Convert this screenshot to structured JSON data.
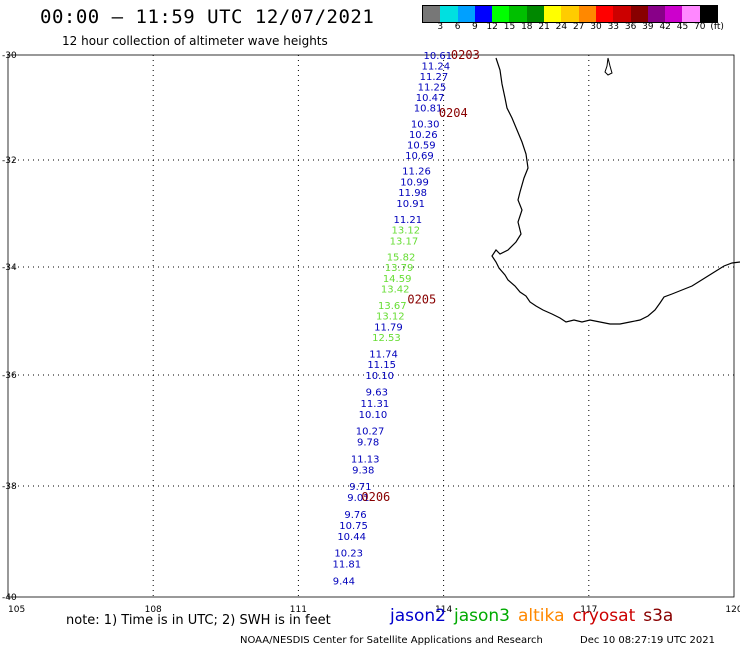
{
  "header": {
    "title": "00:00 – 11:59 UTC 12/07/2021",
    "subtitle": "12 hour collection of altimeter wave heights"
  },
  "colorbar": {
    "colors": [
      "#777777",
      "#00e0e0",
      "#00a0ff",
      "#0000ff",
      "#00ff00",
      "#00c000",
      "#008800",
      "#ffff00",
      "#ffcc00",
      "#ff8800",
      "#ff0000",
      "#cc0000",
      "#880000",
      "#880088",
      "#cc00cc",
      "#ff88ff",
      "#000000"
    ],
    "labels": [
      "3",
      "6",
      "9",
      "12",
      "15",
      "18",
      "21",
      "24",
      "27",
      "30",
      "33",
      "36",
      "39",
      "42",
      "45",
      "70",
      "(ft)"
    ]
  },
  "axes": {
    "lon_ticks": [
      "105",
      "108",
      "111",
      "114",
      "117",
      "120"
    ],
    "lat_ticks": [
      "-30",
      "-32",
      "-34",
      "-36",
      "-38",
      "-40"
    ]
  },
  "track": {
    "color_blue": "#0000bb",
    "color_green": "#66dd33",
    "points": [
      {
        "lat": -30.0,
        "lon": 113.88,
        "v": "10.61",
        "c": "b"
      },
      {
        "lat": -30.2,
        "lon": 113.84,
        "v": "11.24",
        "c": "b"
      },
      {
        "lat": -30.4,
        "lon": 113.8,
        "v": "11.27",
        "c": "b"
      },
      {
        "lat": -30.6,
        "lon": 113.76,
        "v": "11.25",
        "c": "b"
      },
      {
        "lat": -30.8,
        "lon": 113.72,
        "v": "10.47",
        "c": "b"
      },
      {
        "lat": -31.0,
        "lon": 113.68,
        "v": "10.81",
        "c": "b"
      },
      {
        "lat": -31.3,
        "lon": 113.62,
        "v": "10.30",
        "c": "b"
      },
      {
        "lat": -31.5,
        "lon": 113.58,
        "v": "10.26",
        "c": "b"
      },
      {
        "lat": -31.7,
        "lon": 113.54,
        "v": "10.59",
        "c": "b"
      },
      {
        "lat": -31.9,
        "lon": 113.5,
        "v": "10.69",
        "c": "b"
      },
      {
        "lat": -32.2,
        "lon": 113.44,
        "v": "11.26",
        "c": "b"
      },
      {
        "lat": -32.4,
        "lon": 113.4,
        "v": "10.99",
        "c": "b"
      },
      {
        "lat": -32.6,
        "lon": 113.36,
        "v": "11.98",
        "c": "b"
      },
      {
        "lat": -32.8,
        "lon": 113.32,
        "v": "10.91",
        "c": "b"
      },
      {
        "lat": -33.1,
        "lon": 113.26,
        "v": "11.21",
        "c": "b"
      },
      {
        "lat": -33.3,
        "lon": 113.22,
        "v": "13.12",
        "c": "g"
      },
      {
        "lat": -33.5,
        "lon": 113.18,
        "v": "13.17",
        "c": "g"
      },
      {
        "lat": -33.8,
        "lon": 113.12,
        "v": "15.82",
        "c": "g"
      },
      {
        "lat": -34.0,
        "lon": 113.08,
        "v": "13.79",
        "c": "g"
      },
      {
        "lat": -34.2,
        "lon": 113.04,
        "v": "14.59",
        "c": "g"
      },
      {
        "lat": -34.4,
        "lon": 113.0,
        "v": "13.42",
        "c": "g"
      },
      {
        "lat": -34.7,
        "lon": 112.94,
        "v": "13.67",
        "c": "g"
      },
      {
        "lat": -34.9,
        "lon": 112.9,
        "v": "13.12",
        "c": "g"
      },
      {
        "lat": -35.1,
        "lon": 112.86,
        "v": "11.79",
        "c": "b"
      },
      {
        "lat": -35.3,
        "lon": 112.82,
        "v": "12.53",
        "c": "g"
      },
      {
        "lat": -35.6,
        "lon": 112.76,
        "v": "11.74",
        "c": "b"
      },
      {
        "lat": -35.8,
        "lon": 112.72,
        "v": "11.15",
        "c": "b"
      },
      {
        "lat": -36.0,
        "lon": 112.68,
        "v": "10.10",
        "c": "b"
      },
      {
        "lat": -36.3,
        "lon": 112.62,
        "v": "9.63",
        "c": "b"
      },
      {
        "lat": -36.5,
        "lon": 112.58,
        "v": "11.31",
        "c": "b"
      },
      {
        "lat": -36.7,
        "lon": 112.54,
        "v": "10.10",
        "c": "b"
      },
      {
        "lat": -37.0,
        "lon": 112.48,
        "v": "10.27",
        "c": "b"
      },
      {
        "lat": -37.2,
        "lon": 112.44,
        "v": "9.78",
        "c": "b"
      },
      {
        "lat": -37.5,
        "lon": 112.38,
        "v": "11.13",
        "c": "b"
      },
      {
        "lat": -37.7,
        "lon": 112.34,
        "v": "9.38",
        "c": "b"
      },
      {
        "lat": -38.0,
        "lon": 112.28,
        "v": "9.71",
        "c": "b"
      },
      {
        "lat": -38.2,
        "lon": 112.24,
        "v": "9.01",
        "c": "b"
      },
      {
        "lat": -38.5,
        "lon": 112.18,
        "v": "9.76",
        "c": "b"
      },
      {
        "lat": -38.7,
        "lon": 112.14,
        "v": "10.75",
        "c": "b"
      },
      {
        "lat": -38.9,
        "lon": 112.1,
        "v": "10.44",
        "c": "b"
      },
      {
        "lat": -39.2,
        "lon": 112.04,
        "v": "10.23",
        "c": "b"
      },
      {
        "lat": -39.4,
        "lon": 112.0,
        "v": "11.81",
        "c": "b"
      },
      {
        "lat": -39.7,
        "lon": 111.94,
        "v": "9.44",
        "c": "b"
      }
    ],
    "time_labels": [
      {
        "lat": -30.0,
        "lon": 114.45,
        "t": "0203"
      },
      {
        "lat": -31.1,
        "lon": 114.2,
        "t": "0204"
      },
      {
        "lat": -34.6,
        "lon": 113.55,
        "t": "0205"
      },
      {
        "lat": -38.2,
        "lon": 112.6,
        "t": "0206"
      }
    ],
    "time_color": "#880000"
  },
  "footer": {
    "note": "note: 1) Time is in UTC; 2) SWH is in feet",
    "legend": [
      {
        "label": "jason2",
        "color": "#0000cc"
      },
      {
        "label": "jason3",
        "color": "#00aa00"
      },
      {
        "label": "altika",
        "color": "#ff8800"
      },
      {
        "label": "cryosat",
        "color": "#cc0000"
      },
      {
        "label": "s3a",
        "color": "#880000"
      }
    ],
    "credit": "NOAA/NESDIS Center for Satellite Applications and Research",
    "timestamp": "Dec 10 08:27:19 UTC 2021"
  }
}
